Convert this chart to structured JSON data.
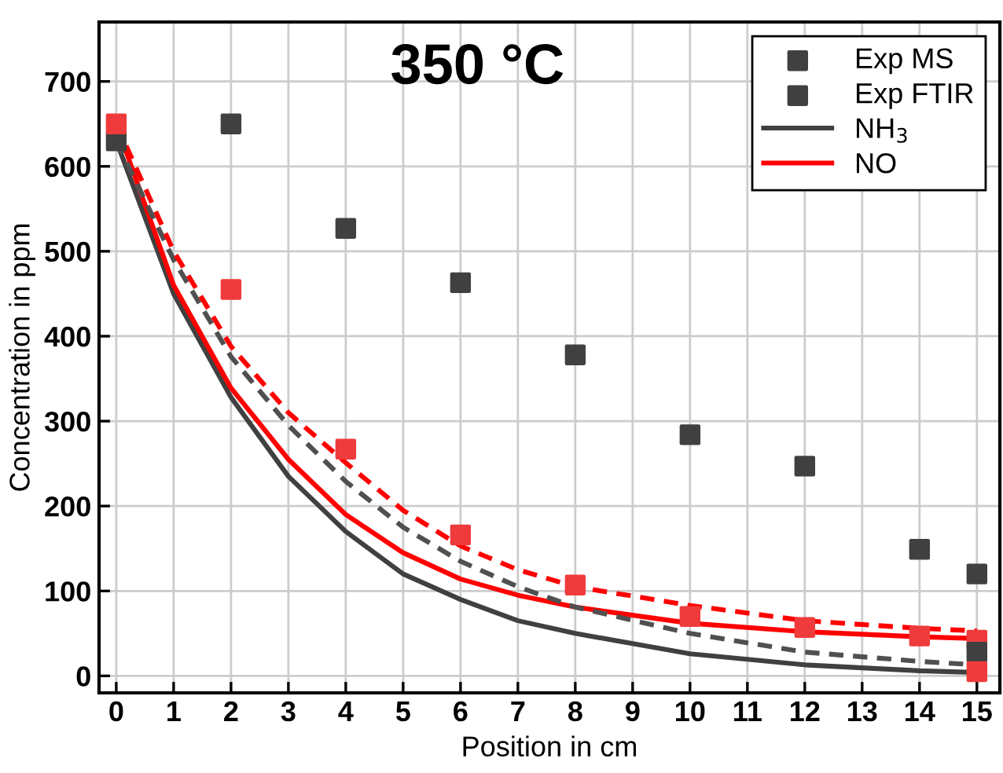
{
  "chart_data": {
    "type": "scatter",
    "title": "350 °C",
    "xlabel": "Position in cm",
    "ylabel": "Concentration in ppm",
    "xlim": [
      -0.3,
      15.4
    ],
    "xticks": [
      0,
      1,
      2,
      3,
      4,
      5,
      6,
      7,
      8,
      9,
      10,
      11,
      12,
      13,
      14,
      15
    ],
    "ylim": [
      -20,
      770
    ],
    "yticks": [
      0,
      100,
      200,
      300,
      400,
      500,
      600,
      700
    ],
    "grid": true,
    "legend": "top right",
    "marker": "square",
    "series": [
      {
        "name": "Exp MS",
        "color": "#404040",
        "x": [
          0,
          2,
          4,
          6,
          8,
          10,
          12,
          14,
          15
        ],
        "values": [
          630,
          650,
          527,
          463,
          378,
          284,
          247,
          149,
          120
        ]
      },
      {
        "color": "#ef3b3b",
        "x": [
          0,
          2,
          4,
          6,
          8,
          10,
          12,
          14,
          15
        ],
        "values": [
          650,
          455,
          267,
          166,
          107,
          70,
          57,
          47,
          42
        ]
      },
      {
        "name": "Exp FTIR",
        "color": "#404040",
        "x": [
          15
        ],
        "values": [
          28
        ]
      },
      {
        "color": "#ef3b3b",
        "x": [
          15
        ],
        "values": [
          5
        ]
      },
      {
        "name": "NH$_{3}$",
        "type": "line",
        "marker": "none",
        "line_style": "solid",
        "color": "#404040",
        "x": [
          0,
          1,
          2,
          3,
          4,
          5,
          6,
          7,
          8,
          10,
          12,
          14,
          15
        ],
        "values": [
          630,
          450,
          328,
          235,
          170,
          120,
          90,
          65,
          50,
          26,
          13,
          6,
          4
        ]
      },
      {
        "name": "NO",
        "type": "line",
        "marker": "none",
        "line_style": "solid",
        "color": "#ff0000",
        "x": [
          0,
          1,
          2,
          3,
          4,
          5,
          6,
          7,
          8,
          10,
          12,
          14,
          15
        ],
        "values": [
          650,
          460,
          339,
          255,
          190,
          145,
          114,
          95,
          81,
          62,
          52,
          46,
          44
        ]
      },
      {
        "type": "line",
        "marker": "none",
        "line_style": "dashed",
        "color": "#505050",
        "x": [
          0,
          1,
          2,
          3,
          4,
          5,
          6,
          7,
          8,
          10,
          12,
          14,
          15
        ],
        "values": [
          630,
          490,
          376,
          295,
          229,
          175,
          135,
          105,
          81,
          50,
          28,
          17,
          13
        ]
      },
      {
        "type": "line",
        "marker": "none",
        "line_style": "dashed",
        "color": "#ff0000",
        "x": [
          0,
          1,
          2,
          3,
          4,
          5,
          6,
          7,
          8,
          10,
          12,
          14,
          15
        ],
        "values": [
          650,
          500,
          388,
          310,
          251,
          195,
          153,
          125,
          105,
          83,
          65,
          56,
          53
        ]
      }
    ]
  }
}
